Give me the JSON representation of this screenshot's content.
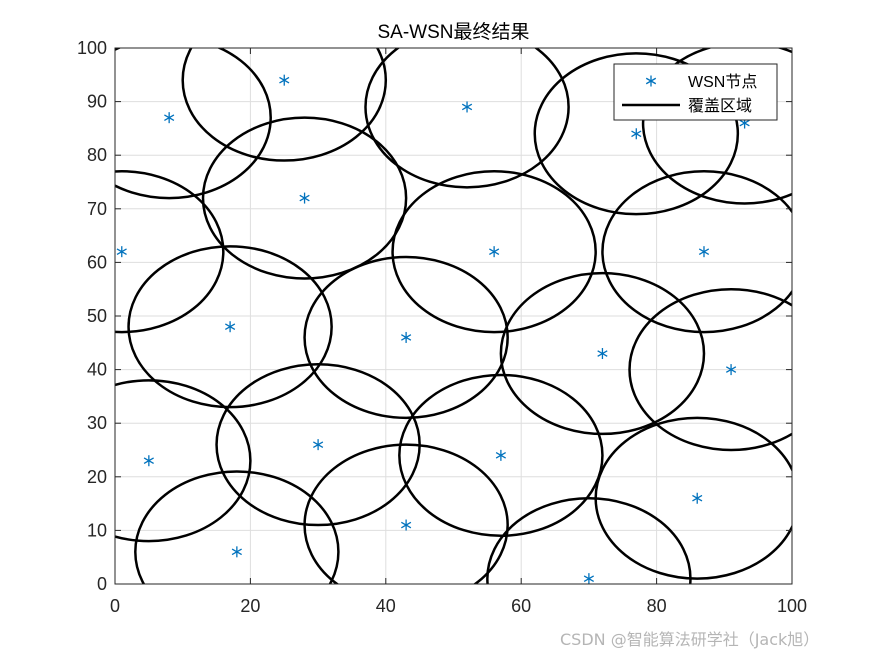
{
  "chart_data": {
    "type": "scatter",
    "title": "SA-WSN最终结果",
    "xlim": [
      0,
      100
    ],
    "ylim": [
      0,
      100
    ],
    "xticks": [
      0,
      20,
      40,
      60,
      80,
      100
    ],
    "yticks": [
      0,
      10,
      20,
      30,
      40,
      50,
      60,
      70,
      80,
      90,
      100
    ],
    "grid": true,
    "legend_position": "top-right",
    "series": [
      {
        "name": "WSN节点",
        "marker": "asterisk",
        "color": "#0072BD",
        "points": [
          [
            1,
            62
          ],
          [
            8,
            87
          ],
          [
            25,
            94
          ],
          [
            28,
            72
          ],
          [
            17,
            48
          ],
          [
            5,
            23
          ],
          [
            18,
            6
          ],
          [
            30,
            26
          ],
          [
            43,
            46
          ],
          [
            43,
            11
          ],
          [
            52,
            89
          ],
          [
            56,
            62
          ],
          [
            57,
            24
          ],
          [
            70,
            1
          ],
          [
            72,
            43
          ],
          [
            77,
            84
          ],
          [
            87,
            62
          ],
          [
            91,
            40
          ],
          [
            93,
            86
          ],
          [
            86,
            16
          ]
        ]
      },
      {
        "name": "覆盖区域",
        "style": "circle",
        "color": "#000000",
        "radius": 15,
        "centers_same_as": "WSN节点"
      }
    ]
  },
  "watermark": "CSDN @智能算法研学社（Jack旭）"
}
